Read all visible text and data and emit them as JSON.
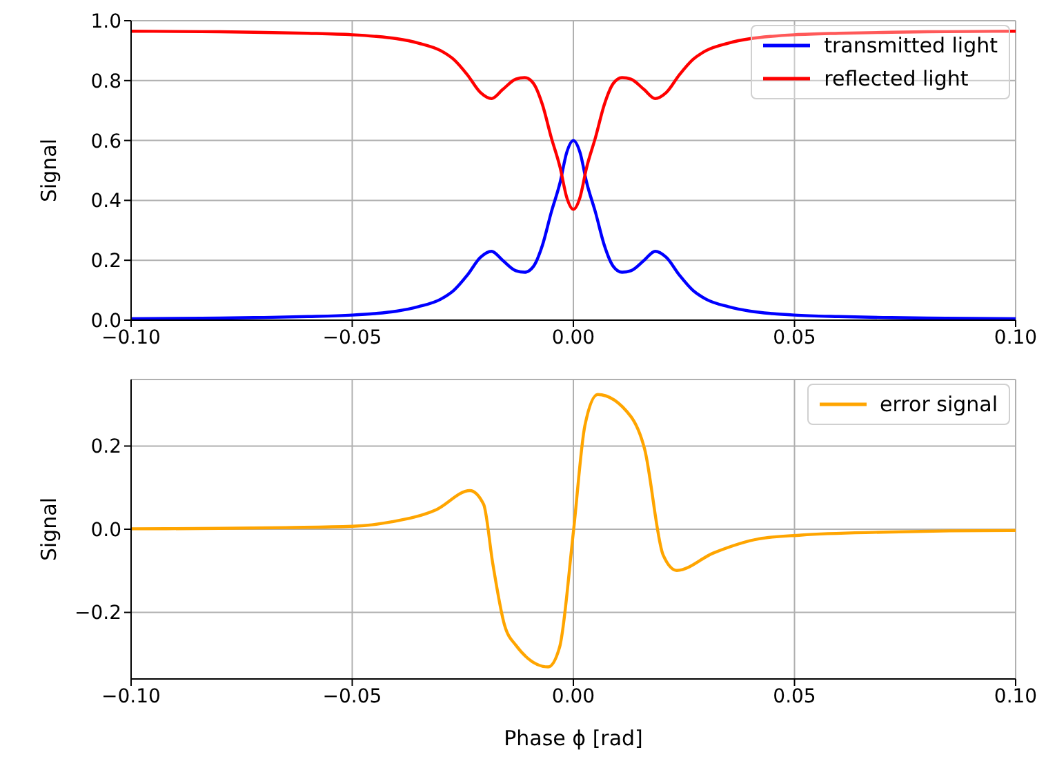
{
  "chart_data": [
    {
      "type": "line",
      "ylabel": "Signal",
      "legend": "top right",
      "grid": true,
      "line_style": "solid",
      "xlim": [
        -0.1,
        0.1
      ],
      "ylim": [
        0,
        1
      ],
      "xticks": [
        {
          "value": -0.1,
          "label": "−0.10"
        },
        {
          "value": -0.05,
          "label": "−0.05"
        },
        {
          "value": 0,
          "label": "0.00"
        },
        {
          "value": 0.05,
          "label": "0.05"
        },
        {
          "value": 0.1,
          "label": "0.10"
        }
      ],
      "yticks": [
        {
          "value": 0,
          "label": "0.0"
        },
        0.2,
        0.4,
        0.6,
        0.8,
        {
          "value": 1,
          "label": "1.0"
        }
      ],
      "x": [
        -0.1,
        -0.09,
        -0.08,
        -0.07,
        -0.06,
        -0.05,
        -0.045,
        -0.04,
        -0.035,
        -0.03,
        -0.027,
        -0.024,
        -0.021,
        -0.0185,
        -0.016,
        -0.013,
        -0.011,
        -0.009,
        -0.007,
        -0.005,
        -0.003,
        -0.0015,
        0,
        0.0015,
        0.003,
        0.005,
        0.007,
        0.009,
        0.011,
        0.013,
        0.016,
        0.0185,
        0.021,
        0.024,
        0.027,
        0.03,
        0.035,
        0.04,
        0.045,
        0.05,
        0.06,
        0.07,
        0.08,
        0.09,
        0.1
      ],
      "series": [
        {
          "name": "transmitted light",
          "color": "#0000ff",
          "values": [
            0.005,
            0.006,
            0.007,
            0.009,
            0.012,
            0.017,
            0.022,
            0.03,
            0.045,
            0.07,
            0.1,
            0.15,
            0.21,
            0.23,
            0.2,
            0.165,
            0.16,
            0.18,
            0.25,
            0.36,
            0.46,
            0.56,
            0.6,
            0.56,
            0.46,
            0.36,
            0.25,
            0.18,
            0.16,
            0.165,
            0.2,
            0.23,
            0.21,
            0.15,
            0.1,
            0.07,
            0.045,
            0.03,
            0.022,
            0.017,
            0.012,
            0.009,
            0.007,
            0.006,
            0.005
          ]
        },
        {
          "name": "reflected light",
          "color": "#ff0000",
          "values": [
            0.965,
            0.964,
            0.963,
            0.961,
            0.958,
            0.953,
            0.948,
            0.94,
            0.925,
            0.9,
            0.87,
            0.82,
            0.76,
            0.74,
            0.77,
            0.805,
            0.81,
            0.79,
            0.72,
            0.61,
            0.51,
            0.41,
            0.37,
            0.41,
            0.51,
            0.61,
            0.72,
            0.79,
            0.81,
            0.805,
            0.77,
            0.74,
            0.76,
            0.82,
            0.87,
            0.9,
            0.925,
            0.94,
            0.948,
            0.953,
            0.958,
            0.961,
            0.963,
            0.964,
            0.965
          ]
        }
      ]
    },
    {
      "type": "line",
      "ylabel": "Signal",
      "xlabel": "Phase ϕ [rad]",
      "legend": "top right",
      "grid": true,
      "line_style": "solid",
      "xlim": [
        -0.1,
        0.1
      ],
      "ylim": [
        -0.36,
        0.36
      ],
      "xticks": [
        {
          "value": -0.1,
          "label": "−0.10"
        },
        {
          "value": -0.05,
          "label": "−0.05"
        },
        {
          "value": 0,
          "label": "0.00"
        },
        {
          "value": 0.05,
          "label": "0.05"
        },
        {
          "value": 0.1,
          "label": "0.10"
        }
      ],
      "yticks": [
        {
          "value": -0.2,
          "label": "−0.2"
        },
        {
          "value": 0,
          "label": "0.0"
        },
        0.2
      ],
      "x": [
        -0.1,
        -0.08,
        -0.065,
        -0.05,
        -0.041,
        -0.031,
        -0.0234,
        -0.0203,
        -0.0182,
        -0.0156,
        -0.013,
        -0.0057,
        -0.0031,
        0,
        0.0026,
        0.0055,
        0.013,
        0.0161,
        0.0203,
        0.0234,
        0.0317,
        0.042,
        0.0515,
        0.07,
        0.085,
        0.1
      ],
      "series": [
        {
          "name": "error signal",
          "color": "#ffa500",
          "values": [
            0.001,
            0.002,
            0.004,
            0.007,
            0.018,
            0.047,
            0.093,
            0.06,
            -0.084,
            -0.229,
            -0.279,
            -0.331,
            -0.283,
            -0.007,
            0.249,
            0.324,
            0.271,
            0.193,
            -0.062,
            -0.099,
            -0.057,
            -0.023,
            -0.014,
            -0.007,
            -0.004,
            -0.003
          ]
        }
      ]
    }
  ]
}
